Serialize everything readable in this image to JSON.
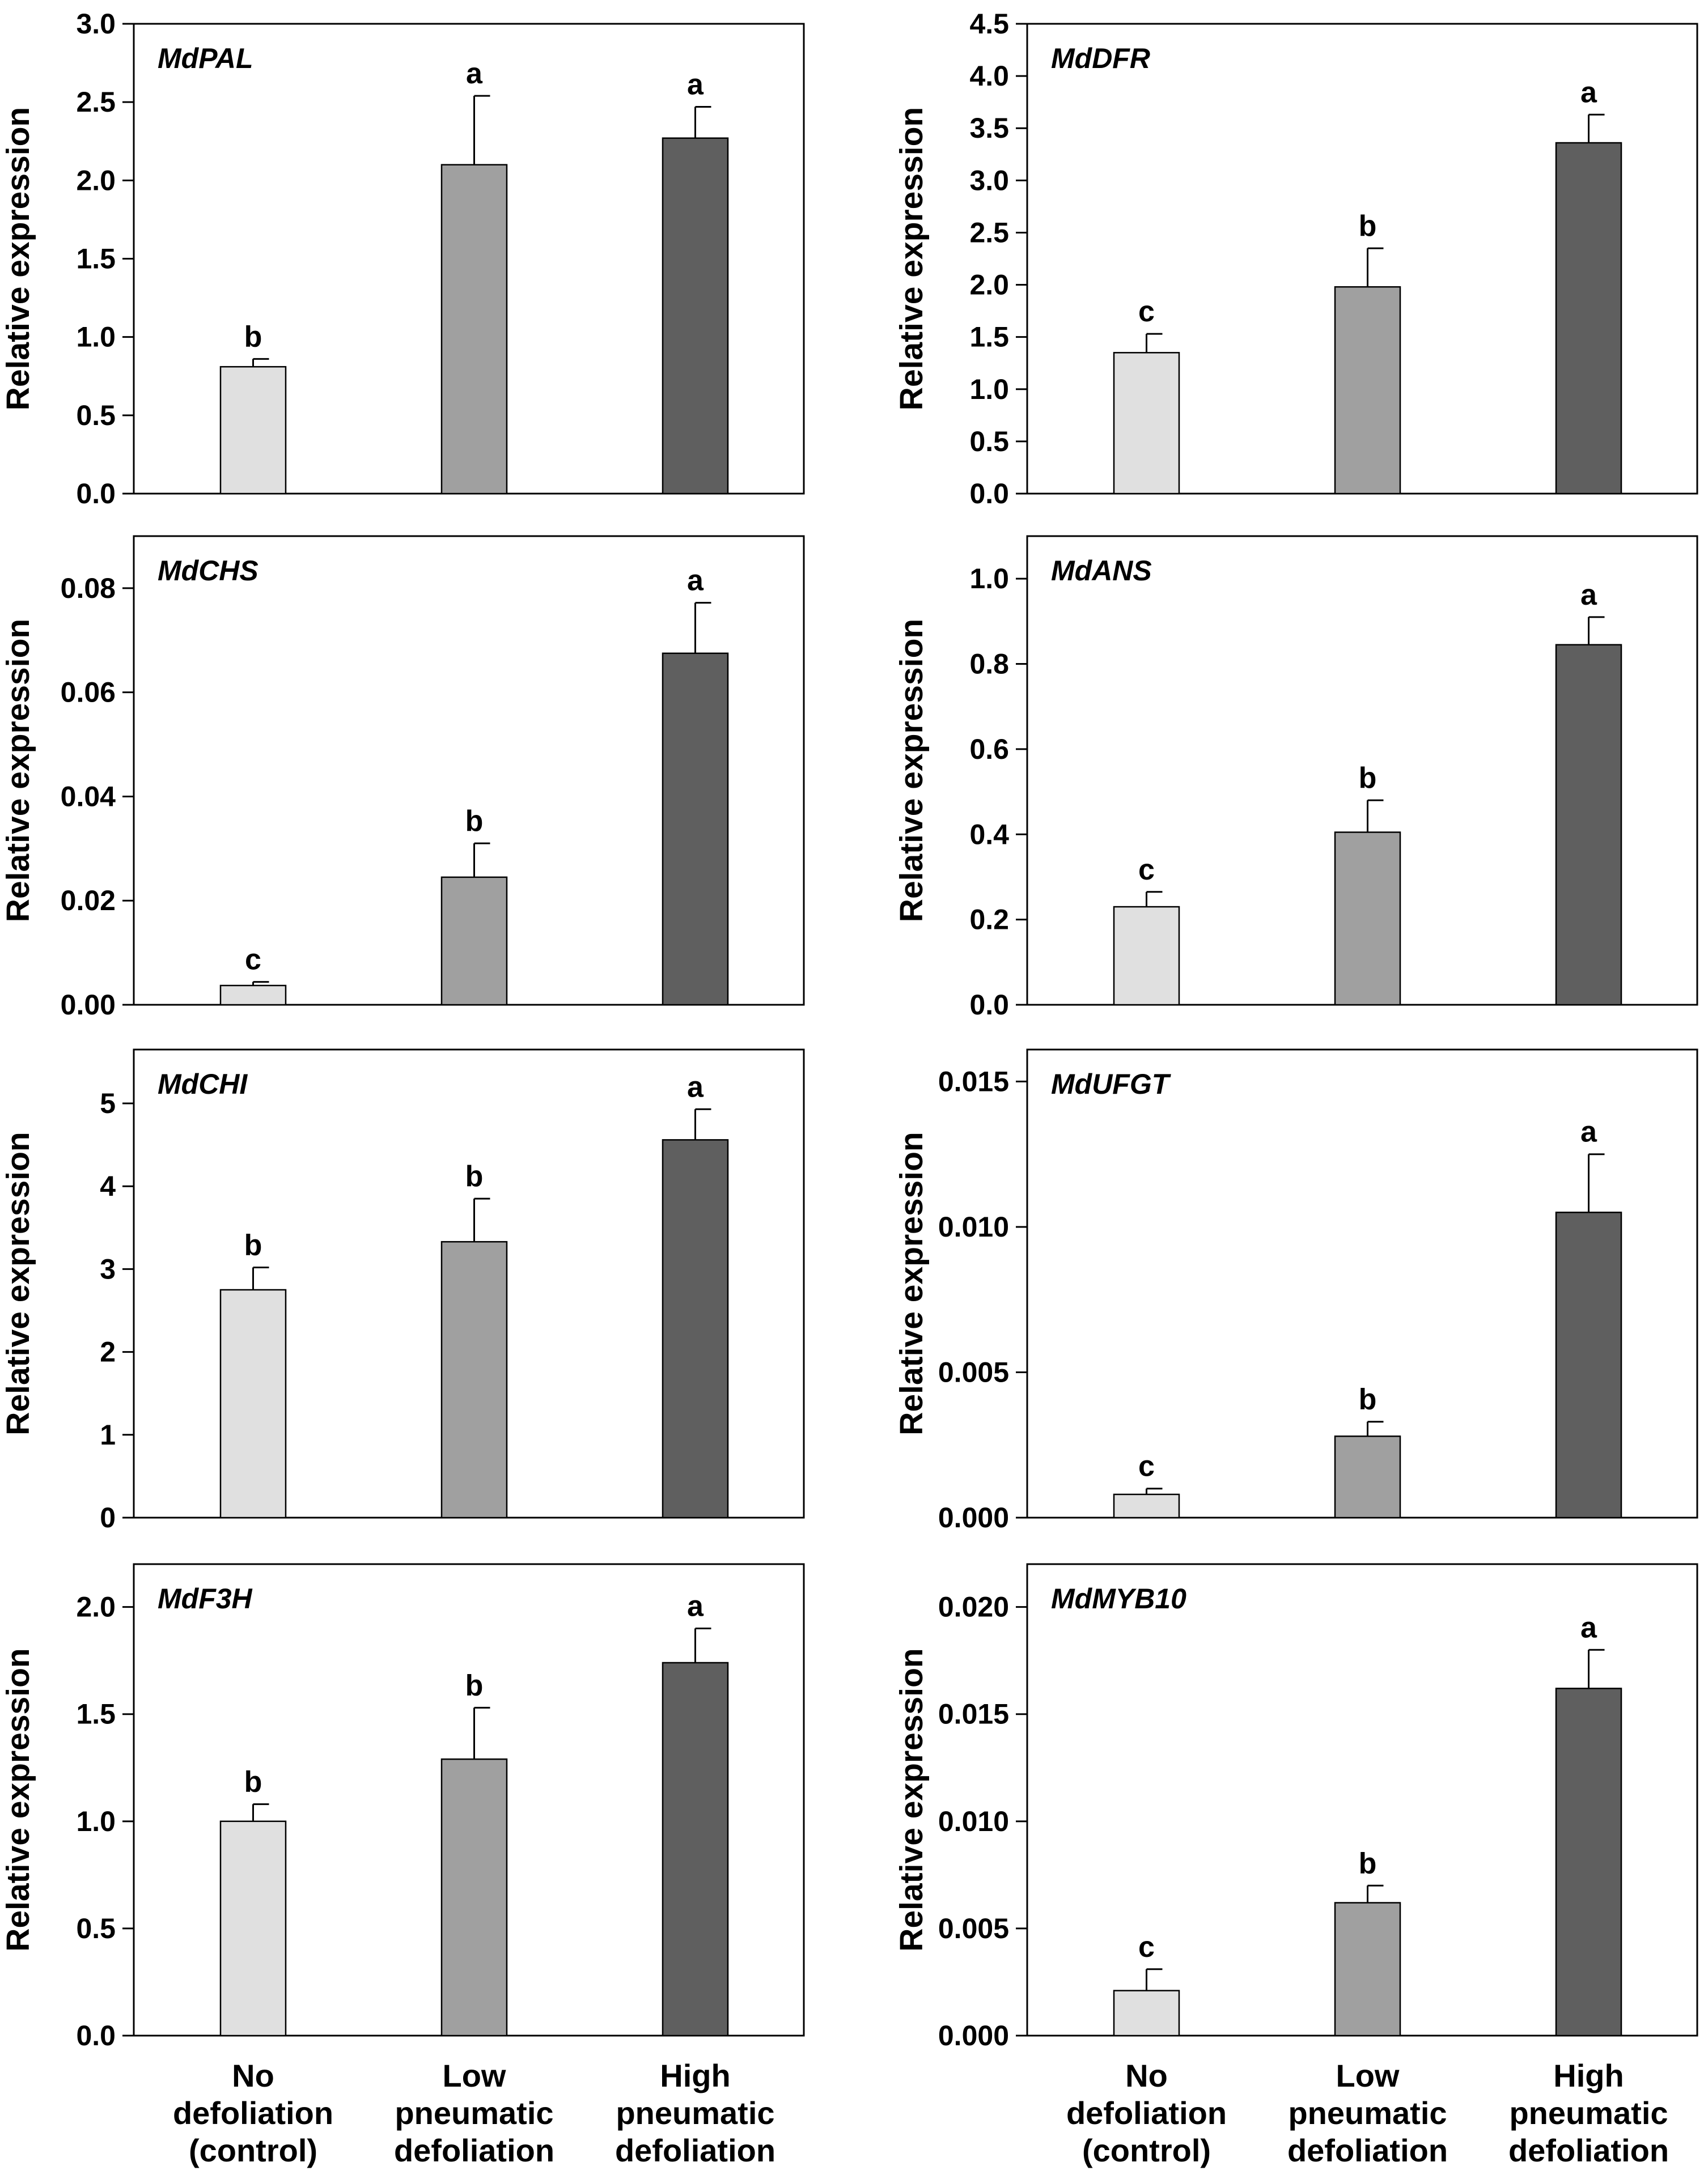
{
  "figure": {
    "categories": [
      [
        "No",
        "defoliation",
        "(control)"
      ],
      [
        "Low",
        "pneumatic",
        "defoliation"
      ],
      [
        "High",
        "pneumatic",
        "defoliation"
      ]
    ],
    "bar_colors": [
      "#e0e0e0",
      "#a0a0a0",
      "#5f5f5f"
    ],
    "axis_color": "#000000"
  },
  "chart_data": [
    {
      "type": "bar",
      "title": "MdPAL",
      "ylabel": "Relative expression",
      "xlabel": "",
      "ylim": [
        0,
        3.0
      ],
      "yticks": [
        0.0,
        0.5,
        1.0,
        1.5,
        2.0,
        2.5,
        3.0
      ],
      "tick_decimals": 1,
      "categories": [
        "No defoliation (control)",
        "Low pneumatic defoliation",
        "High pneumatic defoliation"
      ],
      "values": [
        0.81,
        2.1,
        2.27
      ],
      "errors": [
        0.05,
        0.44,
        0.2
      ],
      "letters": [
        "b",
        "a",
        "a"
      ]
    },
    {
      "type": "bar",
      "title": "MdDFR",
      "ylabel": "Relative expression",
      "xlabel": "",
      "ylim": [
        0,
        4.5
      ],
      "yticks": [
        0.0,
        0.5,
        1.0,
        1.5,
        2.0,
        2.5,
        3.0,
        3.5,
        4.0,
        4.5
      ],
      "tick_decimals": 1,
      "categories": [
        "No defoliation (control)",
        "Low pneumatic defoliation",
        "High pneumatic defoliation"
      ],
      "values": [
        1.35,
        1.98,
        3.36
      ],
      "errors": [
        0.18,
        0.37,
        0.27
      ],
      "letters": [
        "c",
        "b",
        "a"
      ]
    },
    {
      "type": "bar",
      "title": "MdCHS",
      "ylabel": "Relative expression",
      "xlabel": "",
      "ylim": [
        0,
        0.09
      ],
      "yticks": [
        0.0,
        0.02,
        0.04,
        0.06,
        0.08
      ],
      "tick_decimals": 2,
      "categories": [
        "No defoliation (control)",
        "Low pneumatic defoliation",
        "High pneumatic defoliation"
      ],
      "values": [
        0.0037,
        0.0245,
        0.0675
      ],
      "errors": [
        0.0007,
        0.0065,
        0.0097
      ],
      "letters": [
        "c",
        "b",
        "a"
      ]
    },
    {
      "type": "bar",
      "title": "MdANS",
      "ylabel": "Relative expression",
      "xlabel": "",
      "ylim": [
        0,
        1.1
      ],
      "yticks": [
        0.0,
        0.2,
        0.4,
        0.6,
        0.8,
        1.0
      ],
      "tick_decimals": 1,
      "categories": [
        "No defoliation (control)",
        "Low pneumatic defoliation",
        "High pneumatic defoliation"
      ],
      "values": [
        0.23,
        0.405,
        0.845
      ],
      "errors": [
        0.035,
        0.075,
        0.065
      ],
      "letters": [
        "c",
        "b",
        "a"
      ]
    },
    {
      "type": "bar",
      "title": "MdCHI",
      "ylabel": "Relative expression",
      "xlabel": "",
      "ylim": [
        0,
        5.65
      ],
      "yticks": [
        0,
        1,
        2,
        3,
        4,
        5
      ],
      "tick_decimals": 0,
      "categories": [
        "No defoliation (control)",
        "Low pneumatic defoliation",
        "High pneumatic defoliation"
      ],
      "values": [
        2.75,
        3.33,
        4.56
      ],
      "errors": [
        0.27,
        0.52,
        0.37
      ],
      "letters": [
        "b",
        "b",
        "a"
      ]
    },
    {
      "type": "bar",
      "title": "MdUFGT",
      "ylabel": "Relative expression",
      "xlabel": "",
      "ylim": [
        0,
        0.0161
      ],
      "yticks": [
        0.0,
        0.005,
        0.01,
        0.015
      ],
      "tick_decimals": 3,
      "categories": [
        "No defoliation (control)",
        "Low pneumatic defoliation",
        "High pneumatic defoliation"
      ],
      "values": [
        0.0008,
        0.0028,
        0.0105
      ],
      "errors": [
        0.0002,
        0.0005,
        0.002
      ],
      "letters": [
        "c",
        "b",
        "a"
      ]
    },
    {
      "type": "bar",
      "title": "MdF3H",
      "ylabel": "Relative expression",
      "xlabel": "",
      "ylim": [
        0,
        2.2
      ],
      "yticks": [
        0.0,
        0.5,
        1.0,
        1.5,
        2.0
      ],
      "tick_decimals": 1,
      "categories": [
        "No defoliation (control)",
        "Low pneumatic defoliation",
        "High pneumatic defoliation"
      ],
      "values": [
        1.0,
        1.29,
        1.74
      ],
      "errors": [
        0.08,
        0.24,
        0.16
      ],
      "letters": [
        "b",
        "b",
        "a"
      ]
    },
    {
      "type": "bar",
      "title": "MdMYB10",
      "ylabel": "Relative expression",
      "xlabel": "",
      "ylim": [
        0,
        0.022
      ],
      "yticks": [
        0.0,
        0.005,
        0.01,
        0.015,
        0.02
      ],
      "tick_decimals": 3,
      "categories": [
        "No defoliation (control)",
        "Low pneumatic defoliation",
        "High pneumatic defoliation"
      ],
      "values": [
        0.0021,
        0.0062,
        0.0162
      ],
      "errors": [
        0.001,
        0.0008,
        0.0018
      ],
      "letters": [
        "c",
        "b",
        "a"
      ]
    }
  ]
}
